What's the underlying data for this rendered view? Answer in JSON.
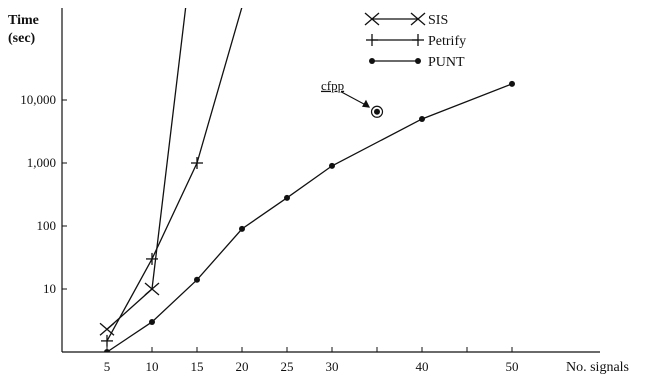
{
  "chart_data": {
    "type": "line",
    "title": "",
    "ylabel_line1": "Time",
    "ylabel_line2": "(sec)",
    "xlabel": "No. signals",
    "y_scale": "log",
    "x_ticks": [
      5,
      10,
      15,
      20,
      25,
      30,
      35,
      40,
      45,
      50
    ],
    "x_tick_labels": [
      "5",
      "10",
      "15",
      "20",
      "25",
      "30",
      "40",
      "50"
    ],
    "x_tick_label_values": [
      5,
      10,
      15,
      20,
      25,
      30,
      40,
      50
    ],
    "y_tick_values": [
      10,
      100,
      1000,
      10000
    ],
    "y_tick_labels": [
      "10",
      "100",
      "1,000",
      "10,000"
    ],
    "series": [
      {
        "name": "SIS",
        "marker": "x",
        "color": "#111111",
        "x": [
          5,
          10,
          14
        ],
        "y": [
          2.3,
          10,
          600000
        ]
      },
      {
        "name": "Petrify",
        "marker": "plus",
        "color": "#111111",
        "x": [
          5,
          10,
          15,
          20
        ],
        "y": [
          1.5,
          30,
          1000,
          300000
        ]
      },
      {
        "name": "PUNT",
        "marker": "dot",
        "color": "#111111",
        "x": [
          5,
          10,
          15,
          20,
          25,
          30,
          40,
          50
        ],
        "y": [
          1,
          3,
          14,
          90,
          280,
          900,
          5000,
          18000
        ]
      }
    ],
    "annotation": {
      "label": "cfpp",
      "x": 35,
      "y": 6500
    },
    "legend_position": "top-right",
    "grid": false
  }
}
